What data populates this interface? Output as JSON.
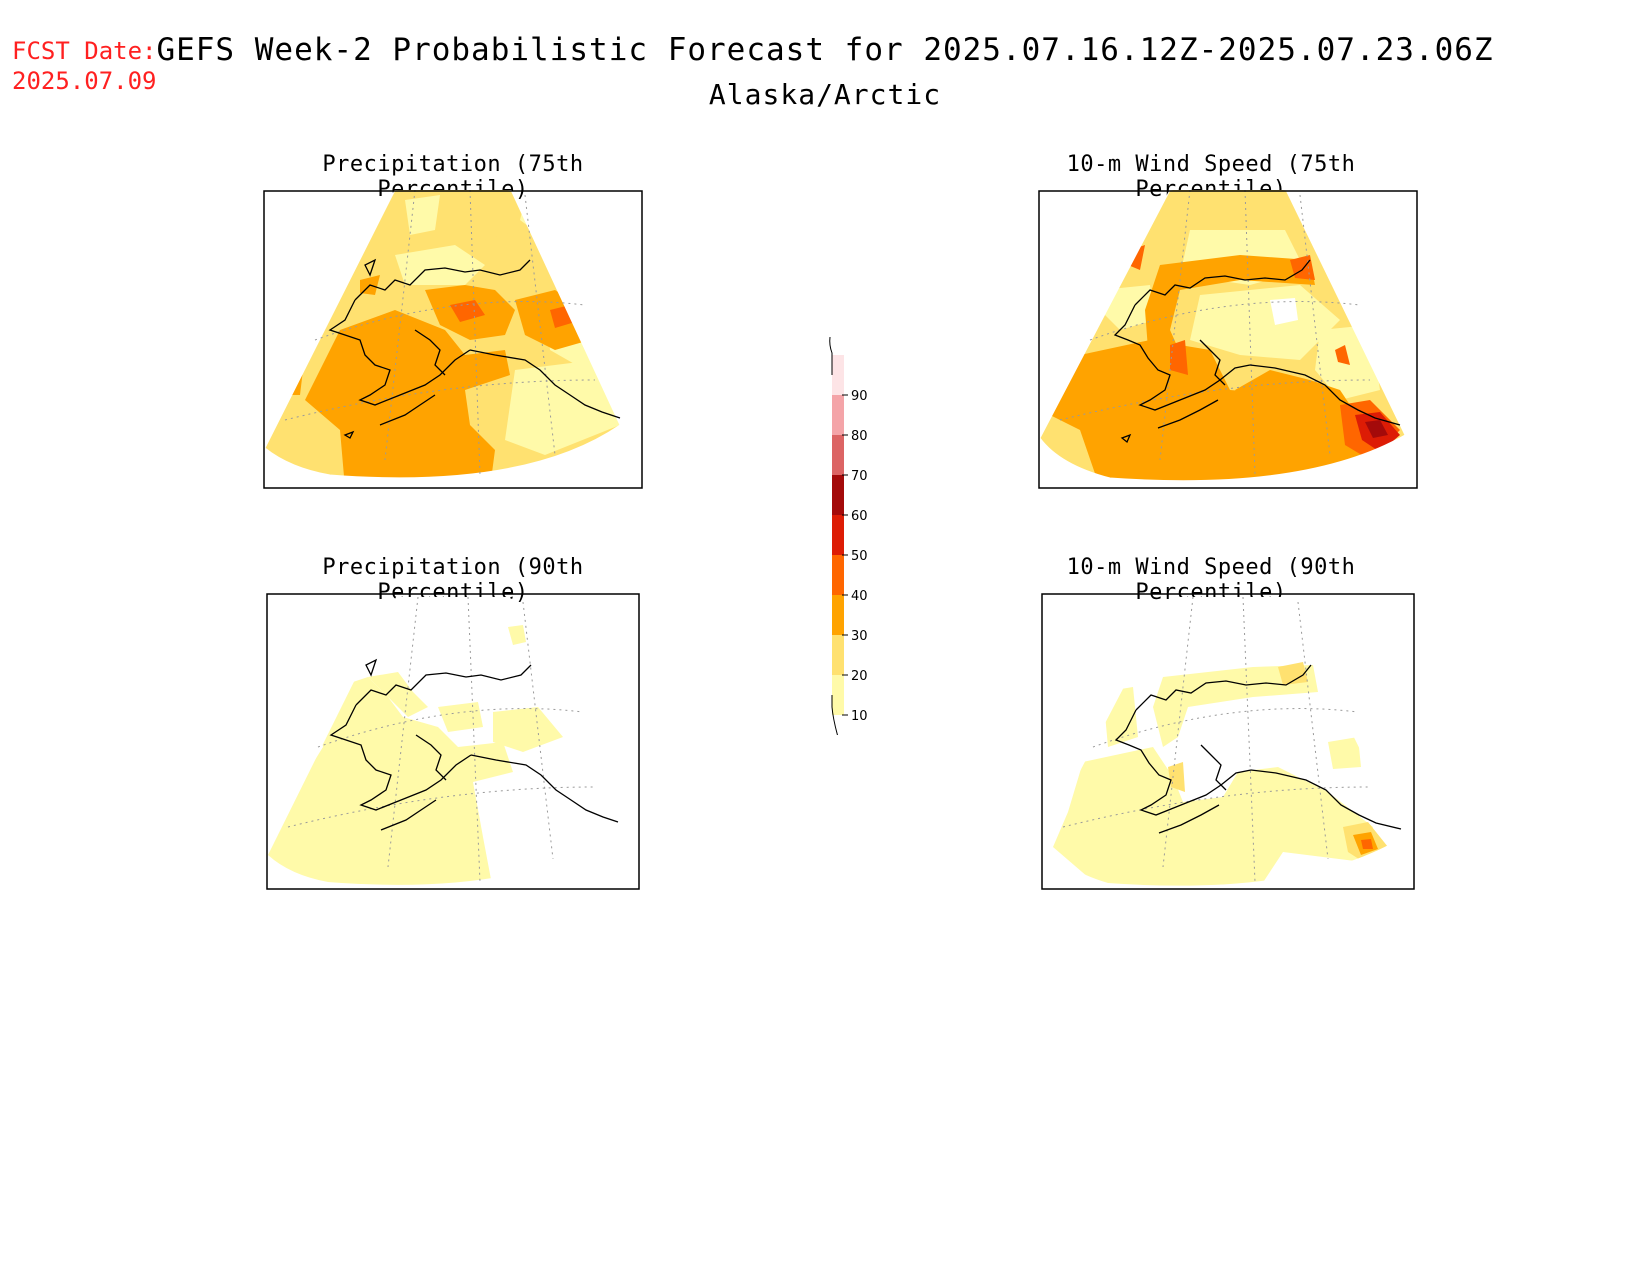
{
  "fcst_label": "FCST Date:",
  "fcst_date": "2025.07.09",
  "title": "GEFS Week-2 Probabilistic Forecast for 2025.07.16.12Z-2025.07.23.06Z",
  "region": "Alaska/Arctic",
  "panels": [
    {
      "id": "precip75",
      "title": "Precipitation (75th Percentile)"
    },
    {
      "id": "wind75",
      "title": "10-m Wind Speed (75th Percentile)"
    },
    {
      "id": "precip90",
      "title": "Precipitation (90th Percentile)"
    },
    {
      "id": "wind90",
      "title": "10-m Wind Speed (90th Percentile)"
    }
  ],
  "colorbar": {
    "levels": [
      "90",
      "80",
      "70",
      "60",
      "50",
      "40",
      "30",
      "20",
      "10"
    ],
    "colors": {
      "above90": "#fde4e6",
      "80-90": "#f4a4a8",
      "70-80": "#dc6464",
      "60-70": "#a40a0a",
      "50-60": "#dd1c05",
      "40-50": "#ff6600",
      "30-40": "#ffa300",
      "20-30": "#ffe170",
      "10-20": "#fffaa9"
    }
  }
}
